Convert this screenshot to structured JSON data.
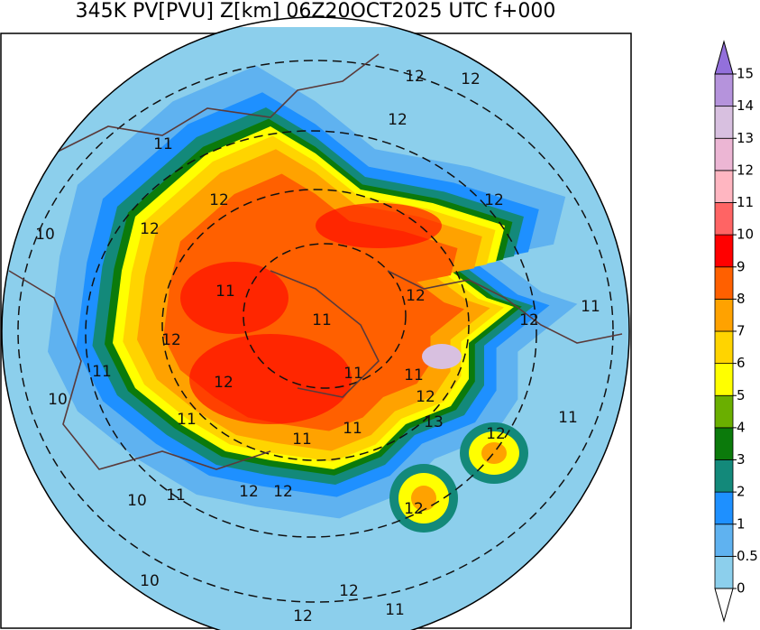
{
  "header": {
    "title": "345K PV[PVU] Z[km] 06Z20OCT2025 UTC f+000"
  },
  "colorbar": {
    "levels": [
      0,
      0.5,
      1,
      2,
      3,
      4,
      5,
      6,
      7,
      8,
      9,
      10,
      11,
      12,
      13,
      14,
      15
    ],
    "colors": [
      "#8ccfec",
      "#5fb2f0",
      "#1e90ff",
      "#13897a",
      "#0b7a0b",
      "#6aaf00",
      "#ffff00",
      "#ffd400",
      "#ffa200",
      "#ff6000",
      "#ff0000",
      "#ff6464",
      "#ffb6c1",
      "#ecb6d4",
      "#d8c0e0",
      "#b593dc"
    ],
    "under_color": "#ffffff",
    "over_color": "#9370db"
  },
  "map": {
    "contour_labels": [
      "12",
      "12",
      "12",
      "11",
      "12",
      "12",
      "12",
      "10",
      "11",
      "12",
      "11",
      "11",
      "12",
      "12",
      "11",
      "12",
      "11",
      "11",
      "12",
      "10",
      "11",
      "13",
      "11",
      "11",
      "11",
      "12",
      "10",
      "11",
      "12",
      "12",
      "12",
      "10",
      "12",
      "12",
      "11"
    ]
  }
}
